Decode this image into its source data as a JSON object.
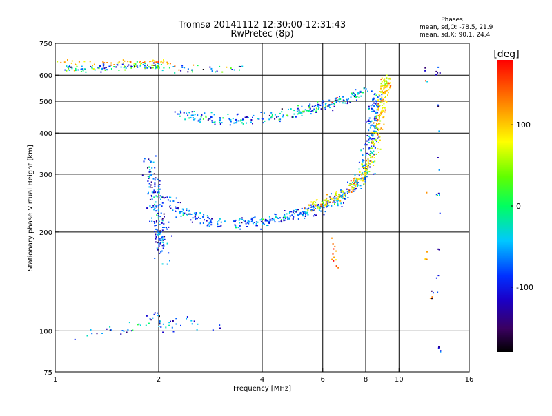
{
  "chart_data": {
    "type": "scatter",
    "title_line1": "Tromsø 20141112 12:30:00-12:31:43",
    "title_line2": "RwPretec (8p)",
    "stats_title": "Phases",
    "stats_line1": "mean, sd,O: -78.5, 21.9",
    "stats_line2": "mean, sd,X:  90.1, 24.4",
    "xlabel": "Frequency [MHz]",
    "ylabel": "Stationary phase Virtual Height [km]",
    "xscale": "log",
    "yscale": "log",
    "xlim": [
      1,
      16
    ],
    "ylim": [
      75,
      750
    ],
    "xticks": [
      1,
      2,
      4,
      6,
      8,
      10,
      16
    ],
    "xtick_labels": [
      "1",
      "2",
      "4",
      "6",
      "8",
      "10",
      "16"
    ],
    "yticks": [
      75,
      100,
      200,
      300,
      400,
      500,
      600,
      750
    ],
    "ytick_labels": [
      "75",
      "100",
      "200",
      "300",
      "400",
      "500",
      "600",
      "750"
    ],
    "x_gridlines": [
      2,
      4,
      6,
      8,
      10
    ],
    "y_gridlines": [
      100,
      200,
      300,
      400,
      500,
      600
    ],
    "grid": true,
    "colorbar": {
      "label": "[deg]",
      "range": [
        -180,
        180
      ],
      "ticks": [
        100,
        0,
        -100
      ],
      "tick_labels": [
        "100",
        "0",
        "-100"
      ],
      "colormap": "black-purple-blue-cyan-green-yellow-orange-red"
    },
    "series": [
      {
        "points": [
          [
            1.05,
            640
          ],
          [
            1.1,
            632
          ],
          [
            1.15,
            628
          ],
          [
            1.2,
            622
          ],
          [
            1.3,
            636
          ],
          [
            1.4,
            630
          ],
          [
            1.5,
            640
          ],
          [
            1.6,
            628
          ],
          [
            1.7,
            638
          ],
          [
            1.8,
            646
          ],
          [
            1.9,
            632
          ],
          [
            2.0,
            642
          ],
          [
            2.1,
            630
          ],
          [
            2.3,
            626
          ],
          [
            2.8,
            626
          ],
          [
            3.1,
            626
          ],
          [
            3.5,
            626
          ]
        ],
        "phase": -40,
        "spread": 70,
        "n": 150,
        "sx": 0.02,
        "sy": 0.012
      },
      {
        "points": [
          [
            1.0,
            652
          ],
          [
            1.3,
            652
          ],
          [
            1.6,
            656
          ],
          [
            1.9,
            660
          ],
          [
            2.2,
            650
          ]
        ],
        "phase": 110,
        "spread": 25,
        "n": 55,
        "sx": 0.02,
        "sy": 0.01
      },
      {
        "points": [
          [
            2.3,
            458
          ],
          [
            2.6,
            446
          ],
          [
            3.0,
            436
          ],
          [
            3.5,
            436
          ],
          [
            4.0,
            446
          ],
          [
            4.5,
            456
          ],
          [
            5.0,
            462
          ],
          [
            5.5,
            472
          ],
          [
            6.0,
            488
          ],
          [
            6.5,
            498
          ],
          [
            7.0,
            508
          ],
          [
            7.5,
            520
          ],
          [
            8.0,
            540
          ]
        ],
        "phase": -60,
        "spread": 45,
        "n": 250,
        "sx": 0.02,
        "sy": 0.02
      },
      {
        "points": [
          [
            2.1,
            258
          ],
          [
            2.3,
            232
          ],
          [
            2.6,
            220
          ],
          [
            3.0,
            214
          ],
          [
            3.5,
            213
          ],
          [
            4.0,
            215
          ],
          [
            4.5,
            220
          ],
          [
            5.0,
            226
          ],
          [
            5.5,
            232
          ],
          [
            6.0,
            240
          ],
          [
            6.5,
            250
          ],
          [
            7.0,
            260
          ],
          [
            7.5,
            275
          ],
          [
            8.0,
            300
          ],
          [
            8.2,
            340
          ],
          [
            8.3,
            380
          ],
          [
            8.4,
            430
          ],
          [
            8.5,
            480
          ],
          [
            8.6,
            520
          ]
        ],
        "phase": -70,
        "spread": 35,
        "n": 520,
        "sx": 0.025,
        "sy": 0.02
      },
      {
        "points": [
          [
            5.5,
            238
          ],
          [
            6.0,
            246
          ],
          [
            6.5,
            255
          ],
          [
            7.0,
            266
          ],
          [
            7.5,
            282
          ],
          [
            8.0,
            308
          ],
          [
            8.4,
            350
          ],
          [
            8.6,
            400
          ],
          [
            8.8,
            450
          ],
          [
            9.0,
            500
          ],
          [
            9.1,
            550
          ],
          [
            9.2,
            590
          ]
        ],
        "phase": 90,
        "spread": 30,
        "n": 300,
        "sx": 0.02,
        "sy": 0.02
      },
      {
        "points": [
          [
            1.85,
            330
          ],
          [
            1.92,
            280
          ],
          [
            1.97,
            245
          ],
          [
            2.0,
            215
          ],
          [
            2.02,
            200
          ],
          [
            2.05,
            185
          ],
          [
            2.08,
            175
          ]
        ],
        "phase": -80,
        "spread": 40,
        "n": 170,
        "sx": 0.025,
        "sy": 0.05
      },
      {
        "points": [
          [
            6.4,
            188
          ],
          [
            6.45,
            175
          ],
          [
            6.5,
            165
          ],
          [
            6.55,
            158
          ],
          [
            6.5,
            510
          ],
          [
            6.6,
            515
          ]
        ],
        "phase": 150,
        "spread": 30,
        "n": 14,
        "sx": 0.01,
        "sy": 0.02
      },
      {
        "points": [
          [
            13.0,
            480
          ],
          [
            13.0,
            400
          ],
          [
            13.0,
            320
          ],
          [
            13.0,
            260
          ],
          [
            13.0,
            230
          ],
          [
            13.0,
            180
          ],
          [
            13.0,
            150
          ],
          [
            13.0,
            140
          ],
          [
            12.6,
            130
          ],
          [
            12.8,
            125
          ],
          [
            13.0,
            90
          ],
          [
            13.0,
            620
          ],
          [
            12.0,
            620
          ],
          [
            12.0,
            590
          ],
          [
            10.1,
            310
          ]
        ],
        "phase": -100,
        "spread": 40,
        "n": 30,
        "sx": 0.008,
        "sy": 0.03
      },
      {
        "points": [
          [
            12.0,
            270
          ],
          [
            12.0,
            195
          ],
          [
            12.0,
            165
          ],
          [
            12.4,
            125
          ],
          [
            12.1,
            560
          ]
        ],
        "phase": 120,
        "spread": 20,
        "n": 8,
        "sx": 0.008,
        "sy": 0.03
      },
      {
        "points": [
          [
            1.1,
            96
          ],
          [
            1.4,
            100
          ],
          [
            1.55,
            101
          ],
          [
            1.8,
            104
          ],
          [
            1.9,
            112
          ],
          [
            2.0,
            106
          ],
          [
            2.1,
            100
          ],
          [
            2.2,
            108
          ],
          [
            2.5,
            106
          ],
          [
            2.7,
            101
          ],
          [
            3.0,
            102
          ]
        ],
        "phase": -75,
        "spread": 40,
        "n": 60,
        "sx": 0.02,
        "sy": 0.02
      }
    ]
  }
}
